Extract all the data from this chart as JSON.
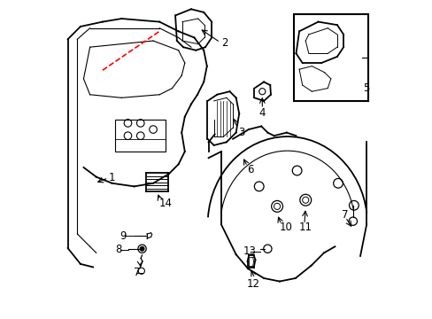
{
  "background_color": "#ffffff",
  "line_color": "#000000",
  "red_dashed_color": "#ff0000",
  "label_color": "#000000",
  "label_fontsize": 8.5,
  "fig_width": 4.89,
  "fig_height": 3.6,
  "dpi": 100
}
